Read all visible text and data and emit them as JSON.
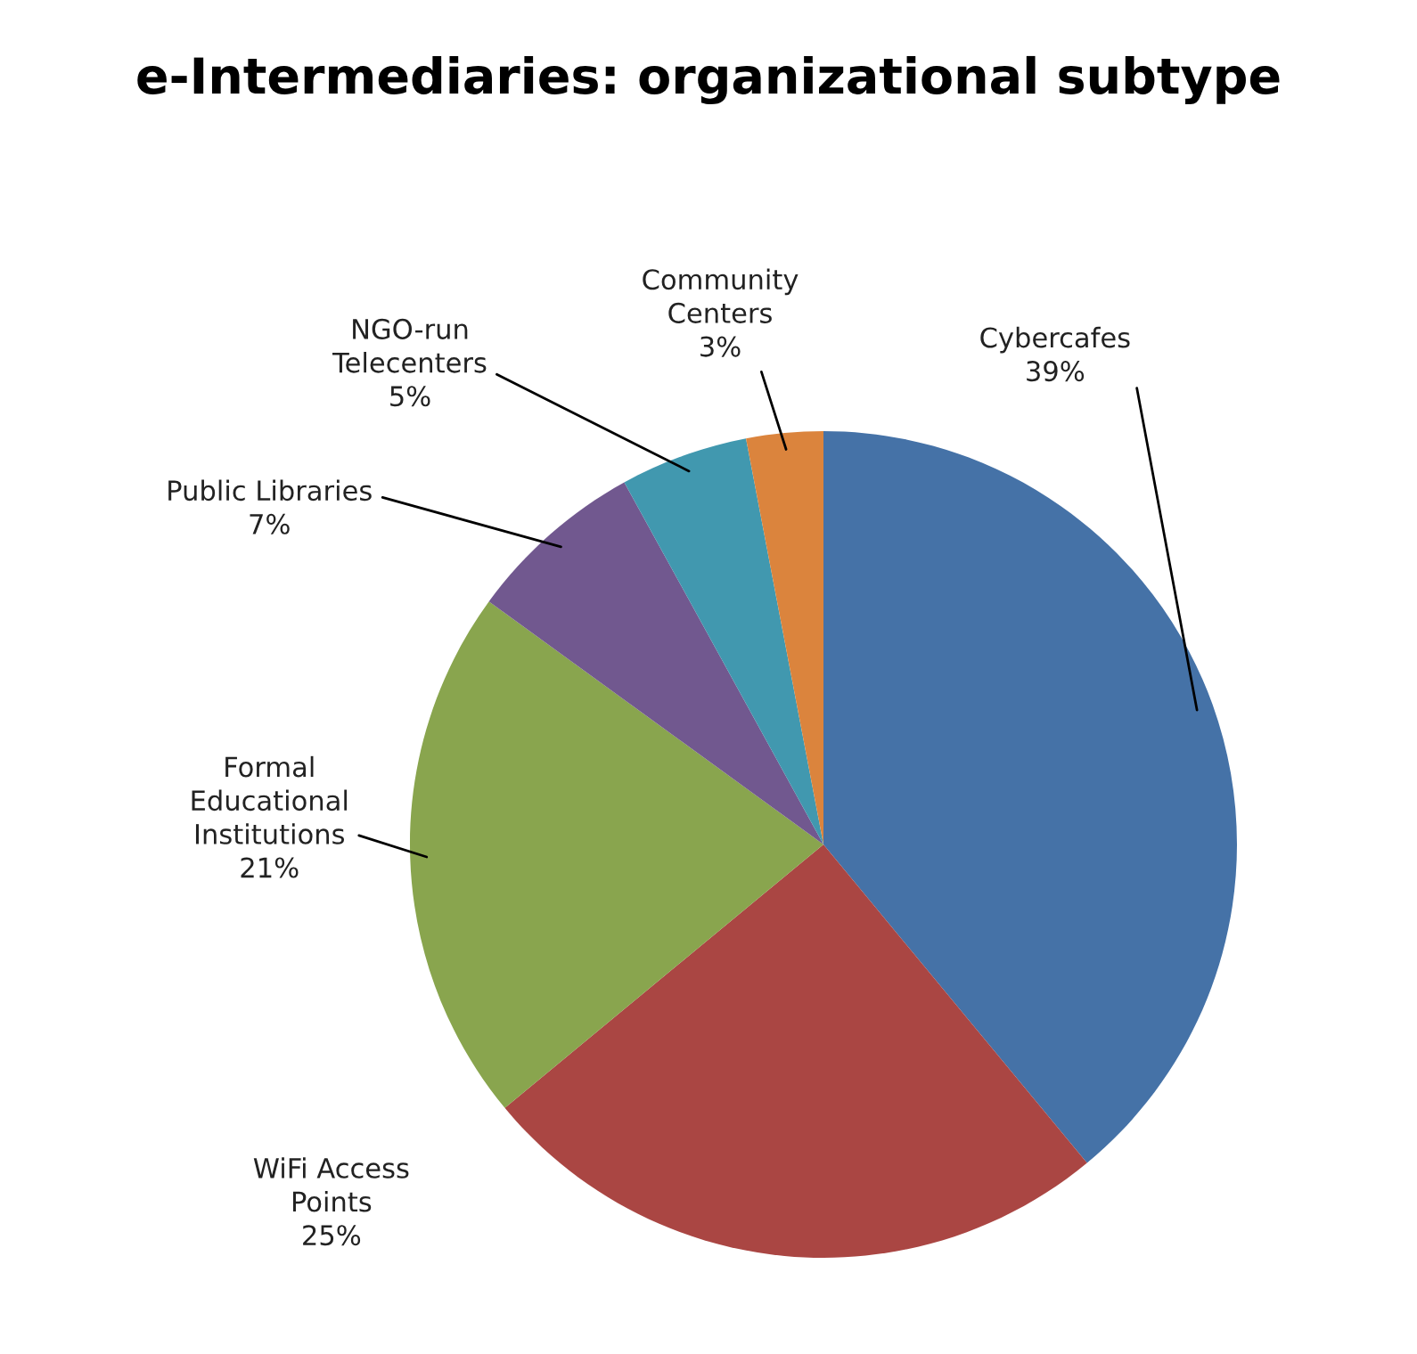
{
  "chart_data": {
    "type": "pie",
    "title": "e-Intermediaries: organizational subtype",
    "categories": [
      "Cybercafes",
      "WiFi Access\nPoints",
      "Formal\nEducational\nInstitutions",
      "Public Libraries",
      "NGO-run\nTelecenters",
      "Community\nCenters"
    ],
    "values": [
      39,
      25,
      21,
      7,
      5,
      3
    ],
    "colors": [
      "#4572a7",
      "#aa4643",
      "#89a54e",
      "#71588f",
      "#4198af",
      "#db843d"
    ],
    "value_labels": [
      "39%",
      "25%",
      "21%",
      "7%",
      "5%",
      "3%"
    ]
  }
}
